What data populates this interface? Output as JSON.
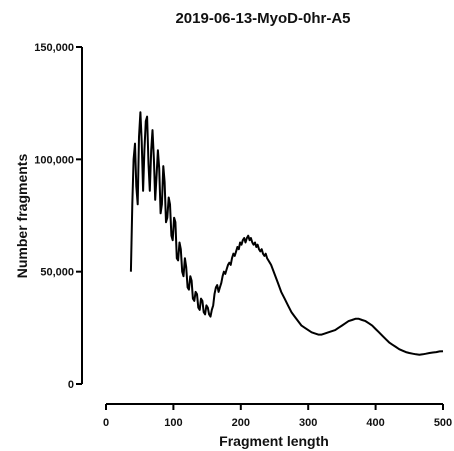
{
  "chart_data": {
    "type": "line",
    "title": "2019-06-13-MyoD-0hr-A5",
    "xlabel": "Fragment length",
    "ylabel": "Number fragments",
    "xlim": [
      0,
      500
    ],
    "ylim": [
      0,
      150000
    ],
    "x_ticks": [
      0,
      100,
      200,
      300,
      400,
      500
    ],
    "x_tick_labels": [
      "0",
      "100",
      "200",
      "300",
      "400",
      "500"
    ],
    "y_ticks": [
      0,
      50000,
      100000,
      150000
    ],
    "y_tick_labels": [
      "0",
      "50,000",
      "100,000",
      "150,000"
    ],
    "grid": false,
    "series": [
      {
        "x": [
          37,
          39,
          41,
          43,
          45,
          47,
          49,
          51,
          53,
          55,
          57,
          59,
          61,
          63,
          65,
          67,
          69,
          71,
          73,
          75,
          77,
          79,
          81,
          83,
          85,
          87,
          89,
          91,
          93,
          95,
          97,
          99,
          101,
          103,
          105,
          107,
          109,
          111,
          113,
          115,
          117,
          119,
          121,
          123,
          125,
          127,
          129,
          131,
          133,
          135,
          137,
          139,
          141,
          143,
          145,
          147,
          149,
          151,
          153,
          155,
          157,
          159,
          161,
          163,
          165,
          167,
          169,
          171,
          173,
          175,
          177,
          179,
          181,
          183,
          185,
          187,
          189,
          191,
          193,
          195,
          197,
          199,
          201,
          203,
          205,
          207,
          209,
          211,
          213,
          215,
          217,
          219,
          221,
          223,
          225,
          227,
          229,
          231,
          233,
          235,
          237,
          239,
          241,
          243,
          245,
          250,
          255,
          260,
          265,
          270,
          275,
          280,
          285,
          290,
          295,
          300,
          305,
          310,
          315,
          320,
          325,
          330,
          335,
          340,
          345,
          350,
          355,
          360,
          365,
          370,
          375,
          380,
          385,
          390,
          395,
          400,
          405,
          410,
          415,
          420,
          425,
          430,
          435,
          440,
          445,
          450,
          455,
          460,
          465,
          470,
          475,
          480,
          485,
          490,
          495,
          500
        ],
        "y": [
          50000,
          80000,
          100000,
          107000,
          88000,
          80000,
          110000,
          121000,
          108000,
          86000,
          104000,
          117000,
          119000,
          98000,
          86000,
          104000,
          113000,
          100000,
          82000,
          93000,
          104000,
          96000,
          76000,
          80000,
          97000,
          90000,
          72000,
          74000,
          83000,
          80000,
          66000,
          64000,
          74000,
          72000,
          56000,
          55000,
          63000,
          60000,
          50000,
          48000,
          56000,
          52000,
          43000,
          42000,
          48000,
          46000,
          38000,
          37000,
          41000,
          40000,
          34000,
          33000,
          38000,
          37000,
          32000,
          31000,
          35000,
          34000,
          31000,
          30000,
          33000,
          35000,
          40000,
          43000,
          44000,
          41000,
          43000,
          45000,
          48000,
          50000,
          49000,
          51000,
          53000,
          54000,
          53000,
          56000,
          58000,
          57000,
          59000,
          61000,
          60000,
          63000,
          62000,
          64000,
          65000,
          63000,
          65000,
          66000,
          64000,
          65000,
          63000,
          62000,
          63000,
          61000,
          62000,
          60000,
          59000,
          60000,
          58000,
          57000,
          58000,
          56000,
          55000,
          54000,
          53000,
          49000,
          45000,
          41000,
          38000,
          35000,
          32000,
          30000,
          28000,
          26000,
          25000,
          24000,
          23000,
          22500,
          22000,
          22000,
          22500,
          23000,
          23500,
          24000,
          25000,
          26000,
          27000,
          28000,
          28500,
          29000,
          29000,
          28500,
          28000,
          27000,
          26000,
          24500,
          23000,
          21500,
          20000,
          18500,
          17500,
          16500,
          15500,
          14800,
          14200,
          13800,
          13500,
          13200,
          13000,
          13200,
          13500,
          13800,
          14000,
          14200,
          14500,
          14600
        ]
      }
    ]
  }
}
